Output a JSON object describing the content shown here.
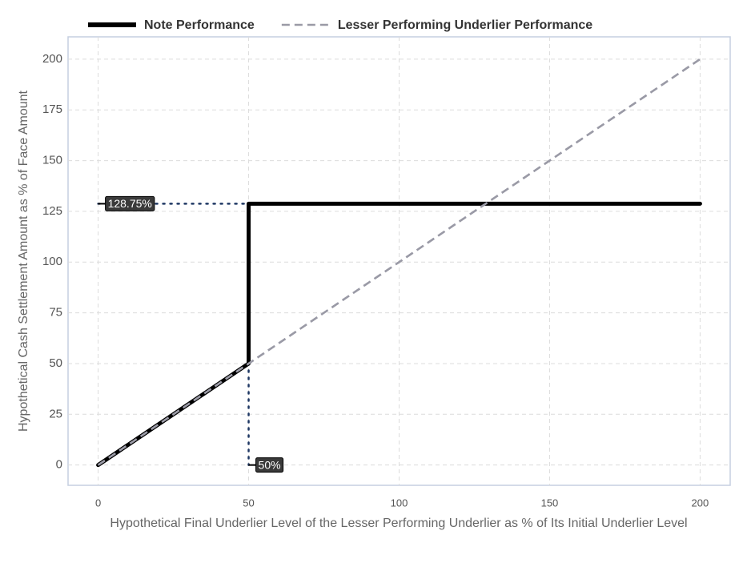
{
  "chart_data": {
    "type": "line",
    "xlabel": "Hypothetical Final Underlier Level of the Lesser Performing Underlier as % of Its Initial Underlier Level",
    "ylabel": "Hypothetical Cash Settlement Amount as % of Face Amount",
    "xlim": [
      -10,
      210
    ],
    "ylim": [
      -10,
      211
    ],
    "xticks": [
      0,
      50,
      100,
      150,
      200
    ],
    "yticks": [
      0,
      25,
      50,
      75,
      100,
      125,
      150,
      175,
      200
    ],
    "grid": true,
    "legend": "top-left",
    "series": [
      {
        "name": "Note Performance",
        "color": "#000000",
        "style": "solid",
        "x": [
          0,
          50,
          50,
          200
        ],
        "values": [
          0,
          50,
          128.75,
          128.75
        ]
      },
      {
        "name": "Lesser Performing Underlier Performance",
        "color": "#9a9aa6",
        "style": "dashed",
        "x": [
          0,
          200
        ],
        "values": [
          0,
          200
        ]
      }
    ],
    "guide": {
      "color": "#1f3864",
      "x": [
        0,
        50,
        50
      ],
      "values": [
        128.75,
        128.75,
        0
      ]
    },
    "annotations": [
      {
        "text": "128.75%",
        "x": 0,
        "y": 128.75
      },
      {
        "text": "50%",
        "x": 50,
        "y": 0
      }
    ]
  }
}
